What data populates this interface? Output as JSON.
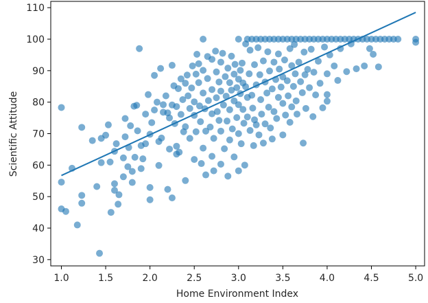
{
  "chart_data": {
    "type": "scatter",
    "xlabel": "Home Environment Index",
    "ylabel": "Scientific Attitude",
    "xlim": [
      0.88,
      5.1
    ],
    "ylim": [
      28,
      112
    ],
    "xticks": [
      "1.0",
      "1.5",
      "2.0",
      "2.5",
      "3.0",
      "3.5",
      "4.0",
      "4.5",
      "5.0"
    ],
    "yticks": [
      "30",
      "40",
      "50",
      "60",
      "70",
      "80",
      "90",
      "100",
      "110"
    ],
    "grid": false,
    "point_color": "#1f77b4",
    "point_alpha": 0.6,
    "line_color": "#1f77b4",
    "trend_line": {
      "x": [
        1.0,
        5.0
      ],
      "y": [
        56.7,
        108.5
      ]
    },
    "points": [
      [
        1.0,
        78.3
      ],
      [
        1.0,
        54.6
      ],
      [
        1.0,
        46.1
      ],
      [
        1.05,
        45.3
      ],
      [
        1.12,
        59.0
      ],
      [
        1.18,
        41.0
      ],
      [
        1.23,
        72.0
      ],
      [
        1.23,
        50.4
      ],
      [
        1.23,
        47.9
      ],
      [
        1.35,
        67.8
      ],
      [
        1.4,
        53.2
      ],
      [
        1.43,
        32.0
      ],
      [
        1.45,
        68.5
      ],
      [
        1.45,
        60.8
      ],
      [
        1.5,
        69.5
      ],
      [
        1.53,
        72.8
      ],
      [
        1.55,
        61.0
      ],
      [
        1.56,
        45.0
      ],
      [
        1.6,
        64.4
      ],
      [
        1.6,
        54.1
      ],
      [
        1.6,
        52.0
      ],
      [
        1.62,
        66.8
      ],
      [
        1.64,
        47.6
      ],
      [
        1.65,
        50.6
      ],
      [
        1.7,
        56.3
      ],
      [
        1.7,
        62.3
      ],
      [
        1.72,
        74.8
      ],
      [
        1.72,
        69.0
      ],
      [
        1.75,
        59.5
      ],
      [
        1.76,
        65.6
      ],
      [
        1.78,
        72.5
      ],
      [
        1.8,
        58.0
      ],
      [
        1.8,
        54.5
      ],
      [
        1.82,
        78.7
      ],
      [
        1.83,
        62.5
      ],
      [
        1.85,
        79.0
      ],
      [
        1.86,
        70.9
      ],
      [
        1.88,
        97.0
      ],
      [
        1.9,
        58.9
      ],
      [
        1.9,
        66.2
      ],
      [
        1.92,
        62.0
      ],
      [
        1.95,
        66.8
      ],
      [
        1.95,
        76.2
      ],
      [
        1.98,
        82.4
      ],
      [
        2.0,
        52.9
      ],
      [
        2.0,
        49.0
      ],
      [
        2.0,
        69.8
      ],
      [
        2.02,
        73.5
      ],
      [
        2.05,
        88.5
      ],
      [
        2.05,
        77.5
      ],
      [
        2.08,
        80.0
      ],
      [
        2.1,
        67.5
      ],
      [
        2.1,
        59.9
      ],
      [
        2.12,
        90.7
      ],
      [
        2.13,
        68.6
      ],
      [
        2.15,
        79.2
      ],
      [
        2.15,
        76.8
      ],
      [
        2.18,
        82.0
      ],
      [
        2.2,
        76.6
      ],
      [
        2.2,
        52.3
      ],
      [
        2.22,
        65.1
      ],
      [
        2.22,
        75.0
      ],
      [
        2.25,
        91.7
      ],
      [
        2.25,
        79.1
      ],
      [
        2.25,
        49.6
      ],
      [
        2.27,
        85.2
      ],
      [
        2.28,
        73.2
      ],
      [
        2.3,
        66.0
      ],
      [
        2.3,
        63.5
      ],
      [
        2.3,
        78.6
      ],
      [
        2.32,
        84.3
      ],
      [
        2.33,
        64.1
      ],
      [
        2.35,
        87.4
      ],
      [
        2.35,
        76.1
      ],
      [
        2.37,
        80.8
      ],
      [
        2.38,
        70.6
      ],
      [
        2.4,
        86.0
      ],
      [
        2.4,
        72.2
      ],
      [
        2.4,
        55.1
      ],
      [
        2.42,
        88.6
      ],
      [
        2.43,
        82.0
      ],
      [
        2.45,
        78.0
      ],
      [
        2.45,
        68.5
      ],
      [
        2.47,
        84.5
      ],
      [
        2.48,
        91.5
      ],
      [
        2.5,
        80.1
      ],
      [
        2.5,
        75.8
      ],
      [
        2.5,
        61.8
      ],
      [
        2.52,
        88.9
      ],
      [
        2.52,
        70.6
      ],
      [
        2.53,
        95.2
      ],
      [
        2.55,
        92.2
      ],
      [
        2.55,
        86.2
      ],
      [
        2.56,
        78.8
      ],
      [
        2.57,
        73.8
      ],
      [
        2.58,
        60.5
      ],
      [
        2.6,
        100.0
      ],
      [
        2.6,
        90.1
      ],
      [
        2.6,
        82.9
      ],
      [
        2.6,
        65.4
      ],
      [
        2.62,
        77.9
      ],
      [
        2.63,
        70.8
      ],
      [
        2.63,
        56.9
      ],
      [
        2.65,
        94.5
      ],
      [
        2.65,
        87.5
      ],
      [
        2.66,
        80.5
      ],
      [
        2.68,
        72.1
      ],
      [
        2.7,
        93.6
      ],
      [
        2.7,
        84.0
      ],
      [
        2.7,
        76.3
      ],
      [
        2.7,
        62.8
      ],
      [
        2.72,
        68.5
      ],
      [
        2.72,
        58.2
      ],
      [
        2.74,
        96.2
      ],
      [
        2.75,
        89.6
      ],
      [
        2.75,
        81.4
      ],
      [
        2.76,
        77.0
      ],
      [
        2.78,
        86.4
      ],
      [
        2.78,
        74.2
      ],
      [
        2.8,
        92.7
      ],
      [
        2.8,
        83.5
      ],
      [
        2.8,
        70.8
      ],
      [
        2.8,
        60.3
      ],
      [
        2.82,
        95.5
      ],
      [
        2.83,
        79.1
      ],
      [
        2.84,
        65.2
      ],
      [
        2.85,
        88.1
      ],
      [
        2.86,
        81.9
      ],
      [
        2.87,
        74.0
      ],
      [
        2.88,
        90.8
      ],
      [
        2.88,
        56.5
      ],
      [
        2.9,
        86.2
      ],
      [
        2.9,
        77.6
      ],
      [
        2.9,
        68.0
      ],
      [
        2.92,
        94.6
      ],
      [
        2.92,
        83.8
      ],
      [
        2.93,
        71.5
      ],
      [
        2.95,
        88.9
      ],
      [
        2.95,
        80.4
      ],
      [
        2.95,
        62.6
      ],
      [
        2.96,
        92.0
      ],
      [
        2.98,
        84.6
      ],
      [
        2.98,
        75.1
      ],
      [
        3.0,
        100.0
      ],
      [
        3.0,
        87.3
      ],
      [
        3.0,
        79.2
      ],
      [
        3.0,
        70.0
      ],
      [
        3.0,
        58.2
      ],
      [
        3.02,
        90.1
      ],
      [
        3.02,
        82.7
      ],
      [
        3.03,
        66.8
      ],
      [
        3.04,
        92.4
      ],
      [
        3.05,
        86.1
      ],
      [
        3.05,
        77.7
      ],
      [
        3.06,
        73.3
      ],
      [
        3.07,
        60.0
      ],
      [
        3.08,
        98.5
      ],
      [
        3.08,
        84.9
      ],
      [
        3.1,
        100.0
      ],
      [
        3.1,
        81.5
      ],
      [
        3.1,
        75.3
      ],
      [
        3.12,
        89.0
      ],
      [
        3.13,
        96.5
      ],
      [
        3.13,
        71.0
      ],
      [
        3.15,
        100.0
      ],
      [
        3.15,
        82.2
      ],
      [
        3.16,
        78.1
      ],
      [
        3.17,
        66.2
      ],
      [
        3.18,
        91.9
      ],
      [
        3.18,
        74.4
      ],
      [
        3.2,
        100.0
      ],
      [
        3.2,
        85.5
      ],
      [
        3.2,
        72.8
      ],
      [
        3.22,
        97.3
      ],
      [
        3.23,
        69.6
      ],
      [
        3.24,
        88.7
      ],
      [
        3.25,
        100.0
      ],
      [
        3.25,
        80.8
      ],
      [
        3.26,
        76.2
      ],
      [
        3.28,
        93.1
      ],
      [
        3.28,
        67.0
      ],
      [
        3.3,
        100.0
      ],
      [
        3.3,
        86.4
      ],
      [
        3.3,
        73.1
      ],
      [
        3.32,
        82.9
      ],
      [
        3.33,
        96.0
      ],
      [
        3.34,
        78.4
      ],
      [
        3.35,
        100.0
      ],
      [
        3.35,
        89.9
      ],
      [
        3.36,
        71.8
      ],
      [
        3.38,
        84.2
      ],
      [
        3.38,
        68.3
      ],
      [
        3.4,
        100.0
      ],
      [
        3.4,
        92.7
      ],
      [
        3.4,
        77.0
      ],
      [
        3.42,
        87.2
      ],
      [
        3.43,
        74.8
      ],
      [
        3.45,
        100.0
      ],
      [
        3.45,
        95.3
      ],
      [
        3.45,
        81.5
      ],
      [
        3.46,
        90.5
      ],
      [
        3.48,
        84.8
      ],
      [
        3.5,
        100.0
      ],
      [
        3.5,
        88.0
      ],
      [
        3.5,
        79.6
      ],
      [
        3.5,
        69.6
      ],
      [
        3.52,
        93.4
      ],
      [
        3.53,
        75.9
      ],
      [
        3.55,
        100.0
      ],
      [
        3.55,
        86.8
      ],
      [
        3.56,
        82.0
      ],
      [
        3.58,
        97.0
      ],
      [
        3.58,
        73.6
      ],
      [
        3.6,
        100.0
      ],
      [
        3.6,
        91.6
      ],
      [
        3.6,
        78.5
      ],
      [
        3.62,
        85.0
      ],
      [
        3.63,
        98.3
      ],
      [
        3.64,
        89.0
      ],
      [
        3.65,
        100.0
      ],
      [
        3.65,
        80.4
      ],
      [
        3.66,
        76.2
      ],
      [
        3.68,
        92.7
      ],
      [
        3.7,
        100.0
      ],
      [
        3.7,
        86.5
      ],
      [
        3.72,
        83.0
      ],
      [
        3.73,
        67.0
      ],
      [
        3.74,
        95.9
      ],
      [
        3.75,
        100.0
      ],
      [
        3.75,
        88.7
      ],
      [
        3.76,
        78.0
      ],
      [
        3.78,
        90.4
      ],
      [
        3.8,
        100.0
      ],
      [
        3.8,
        84.6
      ],
      [
        3.82,
        96.8
      ],
      [
        3.84,
        75.4
      ],
      [
        3.85,
        100.0
      ],
      [
        3.85,
        89.5
      ],
      [
        3.87,
        82.3
      ],
      [
        3.9,
        100.0
      ],
      [
        3.9,
        93.0
      ],
      [
        3.92,
        86.0
      ],
      [
        3.95,
        100.0
      ],
      [
        3.95,
        78.2
      ],
      [
        3.97,
        97.5
      ],
      [
        4.0,
        100.0
      ],
      [
        4.0,
        89.0
      ],
      [
        4.0,
        82.4
      ],
      [
        4.0,
        80.3
      ],
      [
        4.03,
        95.0
      ],
      [
        4.05,
        100.0
      ],
      [
        4.08,
        91.5
      ],
      [
        4.1,
        100.0
      ],
      [
        4.12,
        86.9
      ],
      [
        4.15,
        100.0
      ],
      [
        4.15,
        97.0
      ],
      [
        4.2,
        100.0
      ],
      [
        4.22,
        89.7
      ],
      [
        4.25,
        100.0
      ],
      [
        4.27,
        98.5
      ],
      [
        4.3,
        100.0
      ],
      [
        4.33,
        90.6
      ],
      [
        4.35,
        100.0
      ],
      [
        4.4,
        100.0
      ],
      [
        4.42,
        91.5
      ],
      [
        4.45,
        100.0
      ],
      [
        4.48,
        97.0
      ],
      [
        4.5,
        100.0
      ],
      [
        4.52,
        95.2
      ],
      [
        4.55,
        100.0
      ],
      [
        4.58,
        91.2
      ],
      [
        4.6,
        100.0
      ],
      [
        4.65,
        100.0
      ],
      [
        4.7,
        100.0
      ],
      [
        4.75,
        100.0
      ],
      [
        4.8,
        100.0
      ],
      [
        5.0,
        100.0
      ],
      [
        5.0,
        99.0
      ]
    ]
  }
}
